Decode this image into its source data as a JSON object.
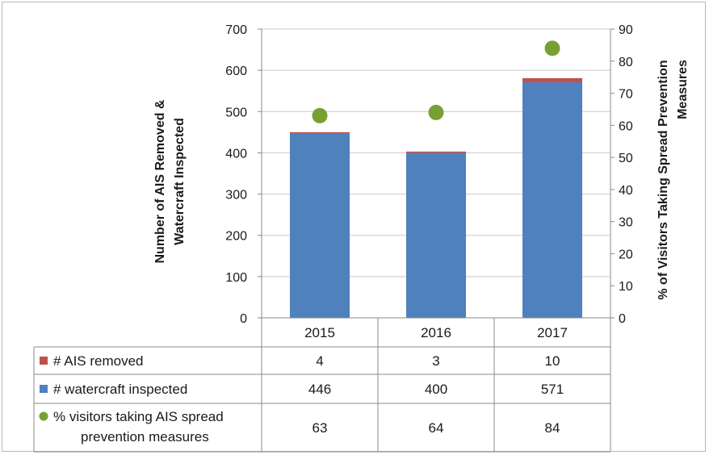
{
  "chart_data": {
    "type": "bar",
    "stacked": true,
    "categories": [
      "2015",
      "2016",
      "2017"
    ],
    "series": [
      {
        "name": "# watercraft inspected",
        "type": "bar",
        "axis": "left",
        "color": "#4f81bd",
        "values": [
          446,
          400,
          571
        ]
      },
      {
        "name": "# AIS removed",
        "type": "bar",
        "axis": "left",
        "color": "#c0504d",
        "values": [
          4,
          3,
          10
        ]
      },
      {
        "name": "% visitors taking AIS spread prevention measures",
        "type": "scatter",
        "axis": "right",
        "color": "#77a033",
        "values": [
          63,
          64,
          84
        ]
      }
    ],
    "table_rows": [
      {
        "label": "# AIS removed",
        "color": "#c0504d",
        "marker": "square",
        "values": [
          "4",
          "3",
          "10"
        ]
      },
      {
        "label": "# watercraft inspected",
        "color": "#4f81bd",
        "marker": "square",
        "values": [
          "446",
          "400",
          "571"
        ]
      },
      {
        "label_lines": [
          "% visitors taking AIS spread",
          "prevention measures"
        ],
        "color": "#77a033",
        "marker": "circle",
        "values": [
          "63",
          "64",
          "84"
        ]
      }
    ],
    "ylabel_lines": [
      "Number of AIS Removed &",
      "Watercraft Inspected"
    ],
    "y2label_lines": [
      "% of Visitors Taking Spread Prevention",
      "Measures"
    ],
    "ylim": [
      0,
      700
    ],
    "yticks": [
      0,
      100,
      200,
      300,
      400,
      500,
      600,
      700
    ],
    "y2lim": [
      0,
      90
    ],
    "y2ticks": [
      0,
      10,
      20,
      30,
      40,
      50,
      60,
      70,
      80,
      90
    ],
    "grid": true,
    "legend": "data-table"
  }
}
